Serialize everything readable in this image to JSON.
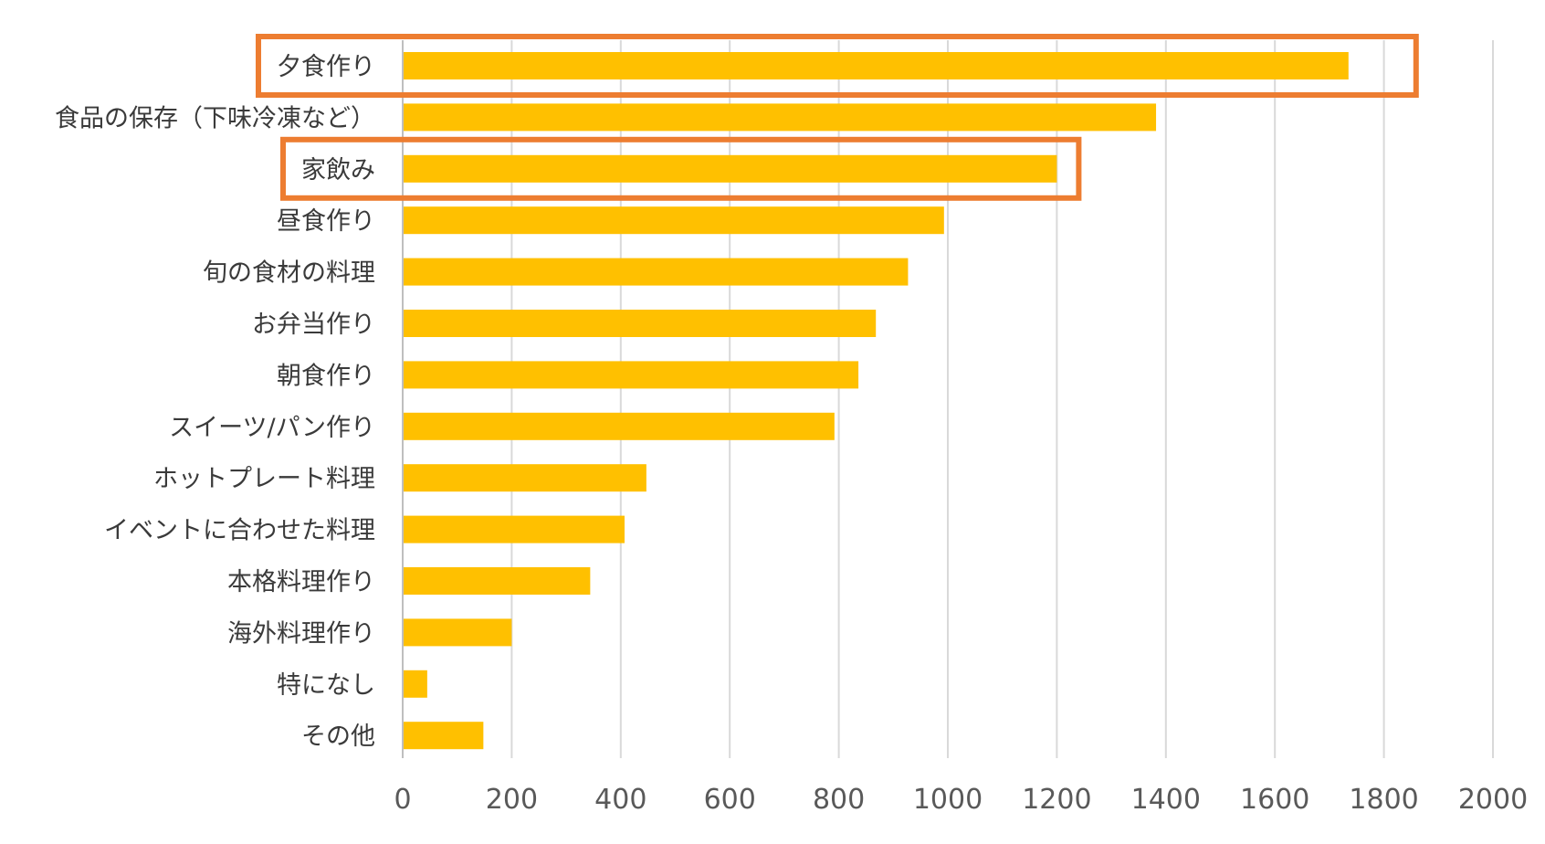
{
  "chart_data": {
    "type": "bar",
    "orientation": "horizontal",
    "title": "",
    "xlabel": "",
    "ylabel": "",
    "categories": [
      "夕食作り",
      "食品の保存（下味冷凍など）",
      "家飲み",
      "昼食作り",
      "旬の食材の料理",
      "お弁当作り",
      "朝食作り",
      "スイーツ/パン作り",
      "ホットプレート料理",
      "イベントに合わせた料理",
      "本格料理作り",
      "海外料理作り",
      "特になし",
      "その他"
    ],
    "values": [
      1735,
      1382,
      1200,
      993,
      927,
      868,
      836,
      792,
      447,
      407,
      344,
      200,
      45,
      148
    ],
    "xlim": [
      0,
      2000
    ],
    "xticks": [
      0,
      200,
      400,
      600,
      800,
      1000,
      1200,
      1400,
      1600,
      1800,
      2000
    ],
    "grid": "vertical",
    "legend": "none",
    "highlighted_categories": [
      "夕食作り",
      "家飲み"
    ],
    "colors": {
      "bar": "#FFC000",
      "highlight_box": "#ED7D31",
      "grid": "#D9D9D9",
      "axis_line": "#BFBFBF",
      "label_text": "#3a3a3a",
      "tick_text": "#595959"
    }
  }
}
